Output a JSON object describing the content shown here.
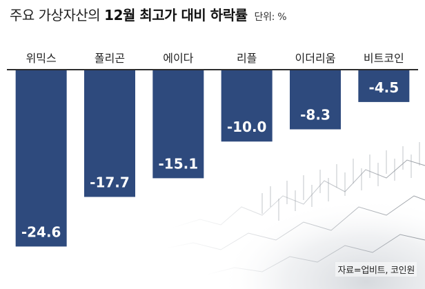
{
  "header": {
    "title_light": "주요 가상자산의",
    "title_bold": "12월 최고가 대비 하락률",
    "unit": "단위: %"
  },
  "chart_data": {
    "type": "bar",
    "orientation": "vertical-down",
    "categories": [
      "위믹스",
      "폴리곤",
      "에이다",
      "리플",
      "이더리움",
      "비트코인"
    ],
    "values": [
      -24.6,
      -17.7,
      -15.1,
      -10.0,
      -8.3,
      -4.5
    ],
    "value_labels": [
      "-24.6",
      "-17.7",
      "-15.1",
      "-10.0",
      "-8.3",
      "-4.5"
    ],
    "ylim": [
      -26,
      0
    ],
    "grid": false,
    "colors": {
      "bar": "#2e4a7d",
      "label": "#ffffff",
      "category": "#222222",
      "axis": "#2c2c2c"
    }
  },
  "footer": {
    "source": "자료=업비트, 코인원"
  }
}
